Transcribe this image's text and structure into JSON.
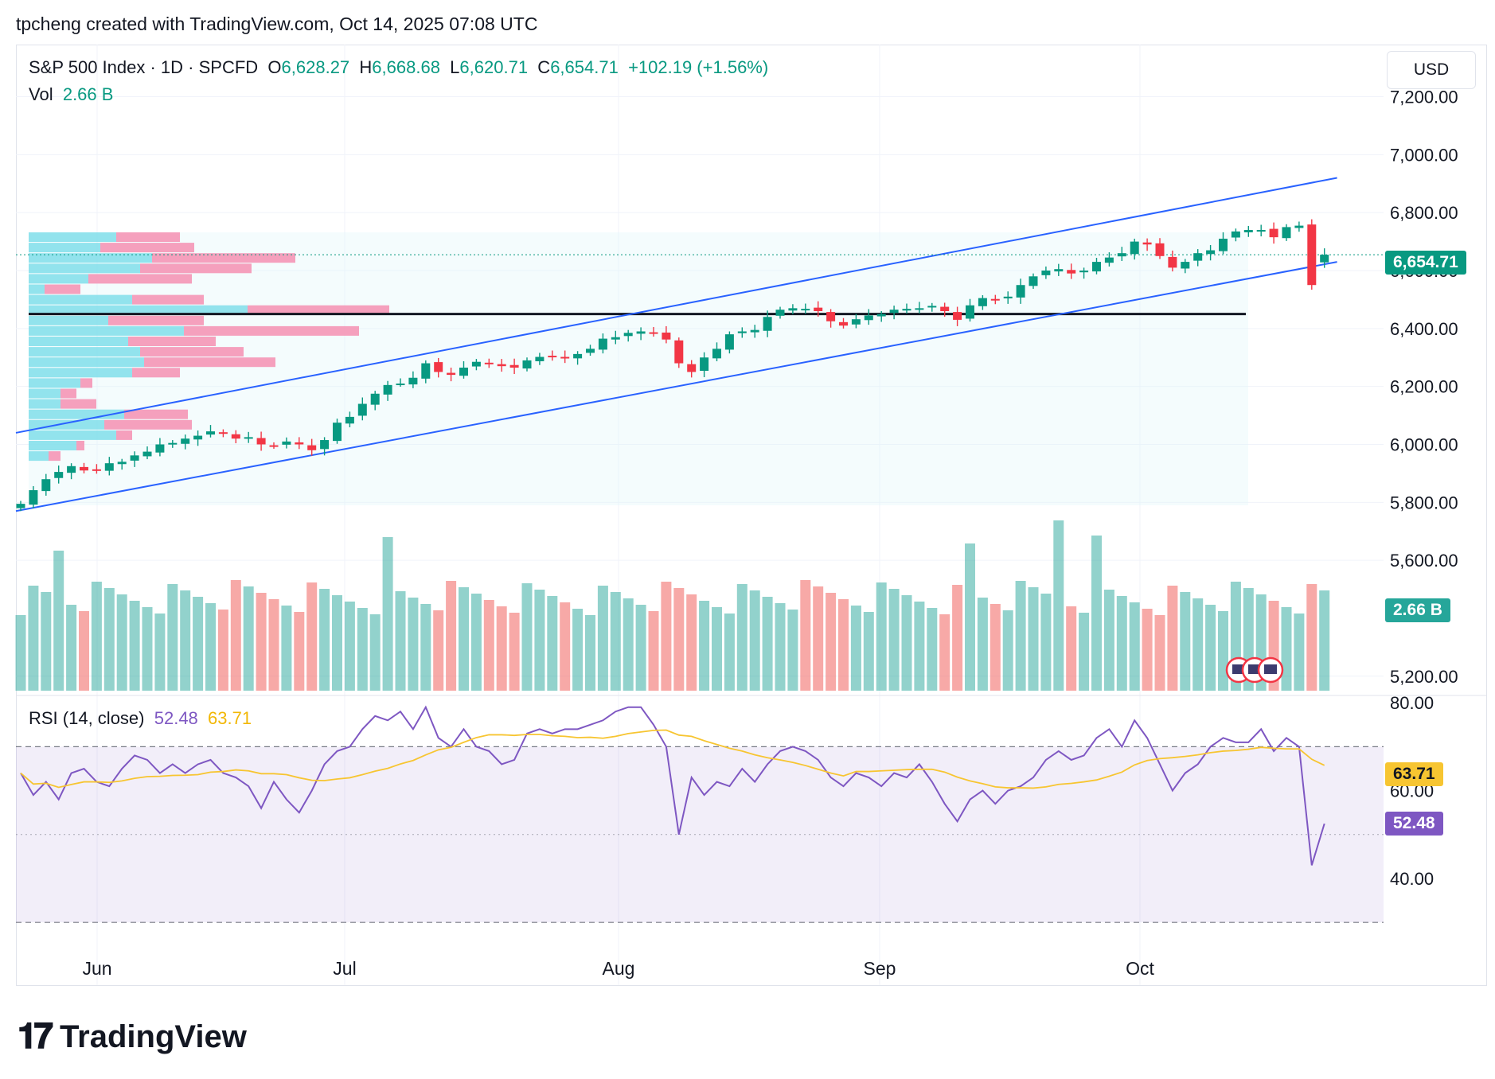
{
  "header": {
    "caption": "tpcheng created with TradingView.com, Oct 14, 2025 07:08 UTC"
  },
  "legend": {
    "symbol": "S&P 500 Index · 1D · SPCFD",
    "open_label": "O",
    "open": "6,628.27",
    "high_label": "H",
    "high": "6,668.68",
    "low_label": "L",
    "low": "6,620.71",
    "close_label": "C",
    "close": "6,654.71",
    "change": "+102.19 (+1.56%)",
    "vol_label": "Vol",
    "vol": "2.66 B",
    "rsi_label": "RSI (14, close)",
    "rsi_value": "52.48",
    "rsi_ma": "63.71"
  },
  "currency": "USD",
  "tags": {
    "price": "6,654.71",
    "volume": "2.66 B",
    "rsi_ma": "63.71",
    "rsi": "52.48"
  },
  "colors": {
    "up": "#089981",
    "down": "#f23645",
    "channel": "#2962ff",
    "rsi": "#7e57c2",
    "rsi_ma": "#f7c531",
    "profile_up": "#80deea",
    "profile_down": "#f48fb1"
  },
  "logo": {
    "text": "TradingView"
  },
  "chart_data": {
    "type": "candlestick",
    "price_axis": {
      "ticks": [
        "7,200.00",
        "7,000.00",
        "6,800.00",
        "6,600.00",
        "6,400.00",
        "6,200.00",
        "6,000.00",
        "5,800.00",
        "5,600.00",
        "5,200.00"
      ],
      "range": [
        5150,
        7380
      ]
    },
    "rsi_axis": {
      "ticks": [
        "80.00",
        "60.00",
        "40.00"
      ],
      "bands": [
        70,
        30
      ]
    },
    "time_labels": [
      "Jun",
      "Jul",
      "Aug",
      "Sep",
      "Oct"
    ],
    "closes": [
      5795,
      5842,
      5880,
      5905,
      5925,
      5910,
      5912,
      5935,
      5940,
      5962,
      5975,
      6000,
      6005,
      6020,
      6030,
      6045,
      6038,
      6020,
      6025,
      6000,
      5995,
      6010,
      6000,
      5980,
      6015,
      6075,
      6095,
      6140,
      6175,
      6205,
      6210,
      6230,
      6280,
      6250,
      6240,
      6265,
      6285,
      6280,
      6270,
      6265,
      6290,
      6302,
      6305,
      6300,
      6312,
      6330,
      6365,
      6370,
      6385,
      6390,
      6382,
      6362,
      6280,
      6250,
      6300,
      6330,
      6380,
      6390,
      6395,
      6440,
      6465,
      6470,
      6468,
      6460,
      6425,
      6410,
      6432,
      6445,
      6450,
      6465,
      6468,
      6470,
      6478,
      6460,
      6430,
      6480,
      6505,
      6500,
      6510,
      6550,
      6580,
      6600,
      6605,
      6590,
      6600,
      6630,
      6645,
      6660,
      6700,
      6690,
      6650,
      6610,
      6630,
      6660,
      6670,
      6710,
      6735,
      6740,
      6740,
      6715,
      6750,
      6755,
      6550,
      6654.71
    ],
    "rsi": [
      64,
      59,
      62,
      58,
      64,
      65,
      62,
      61,
      65,
      68,
      67,
      64,
      66,
      64,
      66,
      67,
      64,
      63,
      61,
      56,
      62,
      58,
      55,
      60,
      66,
      69,
      70,
      74,
      77,
      76,
      78,
      74,
      79,
      72,
      70,
      74,
      70,
      69,
      66,
      67,
      73,
      74,
      73,
      74,
      74,
      75,
      76,
      78,
      79,
      79,
      75,
      70,
      50,
      63,
      59,
      62,
      61,
      65,
      62,
      66,
      69,
      70,
      69,
      67,
      63,
      61,
      64,
      63,
      61,
      64,
      63,
      66,
      62,
      57,
      53,
      58,
      60,
      57,
      60,
      61,
      63,
      67,
      69,
      67,
      68,
      72,
      74,
      70,
      76,
      72,
      66,
      60,
      64,
      66,
      70,
      72,
      71,
      71,
      74,
      69,
      72,
      70,
      43,
      52.48
    ],
    "rsi_ma_value": 63.71,
    "volume_last": "2.66 B",
    "channel": {
      "lower": [
        [
          0,
          5770
        ],
        [
          104,
          6630
        ]
      ],
      "upper": [
        [
          0,
          6040
        ],
        [
          104,
          6920
        ]
      ]
    },
    "support_level": 6450,
    "last_price": 6654.71
  }
}
